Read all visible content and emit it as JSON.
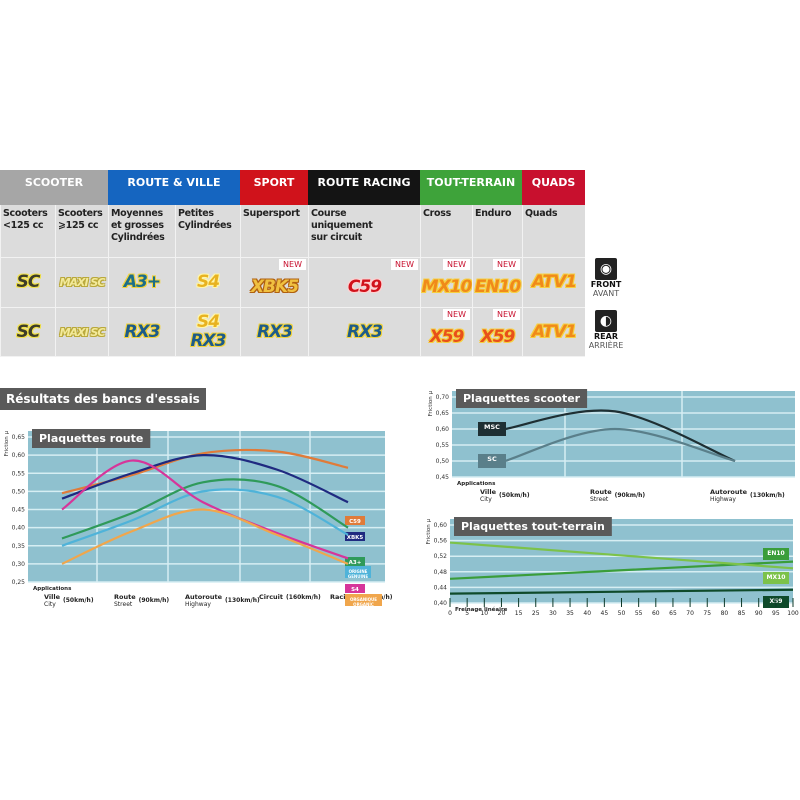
{
  "categories": [
    {
      "label": "SCOOTER",
      "color": "#a6a6a6",
      "span": 2
    },
    {
      "label": "ROUTE & VILLE",
      "color": "#1565c0",
      "span": 2
    },
    {
      "label": "SPORT",
      "color": "#d0121b",
      "span": 1
    },
    {
      "label": "ROUTE RACING",
      "color": "#141414",
      "span": 1
    },
    {
      "label": "TOUT-TERRAIN",
      "color": "#3ea33a",
      "span": 2
    },
    {
      "label": "QUADS",
      "color": "#c8102e",
      "span": 1
    }
  ],
  "uses": [
    "Scooters\n<125 cc",
    "Scooters\n⩾125 cc",
    "Moyennes\net grosses\nCylindrées",
    "Petites\nCylindrées",
    "Supersport",
    "Course\nuniquement\nsur circuit",
    "Cross",
    "Enduro",
    "Quads"
  ],
  "new_label": "NEW",
  "front": [
    {
      "names": [
        "SC"
      ],
      "new": false
    },
    {
      "names": [
        "MAXI SC"
      ],
      "new": false
    },
    {
      "names": [
        "A3+"
      ],
      "new": false
    },
    {
      "names": [
        "S4"
      ],
      "new": false
    },
    {
      "names": [
        "XBK5"
      ],
      "new": true
    },
    {
      "names": [
        "C59"
      ],
      "new": true
    },
    {
      "names": [
        "MX10"
      ],
      "new": true
    },
    {
      "names": [
        "EN10"
      ],
      "new": true
    },
    {
      "names": [
        "ATV1"
      ],
      "new": false
    }
  ],
  "rear": [
    {
      "names": [
        "SC"
      ],
      "new": false
    },
    {
      "names": [
        "MAXI SC"
      ],
      "new": false
    },
    {
      "names": [
        "RX3"
      ],
      "new": false
    },
    {
      "names": [
        "S4",
        "RX3"
      ],
      "new": false
    },
    {
      "names": [
        "RX3"
      ],
      "new": false
    },
    {
      "names": [
        "RX3"
      ],
      "new": false
    },
    {
      "names": [
        "X59"
      ],
      "new": true
    },
    {
      "names": [
        "X59"
      ],
      "new": true
    },
    {
      "names": [
        "ATV1"
      ],
      "new": false
    }
  ],
  "front_side": {
    "icon": "front-wheel-icon",
    "label": "FRONT",
    "sub": "AVANT"
  },
  "rear_side": {
    "icon": "rear-wheel-icon",
    "label": "REAR",
    "sub": "ARRIÈRE"
  },
  "results_title": "Résultats des bancs d'essais",
  "chart_data": [
    {
      "type": "line",
      "title": "Plaquettes route",
      "ylabel": "Friction µ",
      "xlabel": "Applications",
      "ylim": [
        0.25,
        0.65
      ],
      "yticks": [
        "0,25",
        "0,30",
        "0,35",
        "0,40",
        "0,45",
        "0,50",
        "0,55",
        "0,60",
        "0,65"
      ],
      "categories": [
        {
          "fr": "Ville",
          "en": "City",
          "speed": "(50km/h)"
        },
        {
          "fr": "Route",
          "en": "Street",
          "speed": "(90km/h)"
        },
        {
          "fr": "Autoroute",
          "en": "Highway",
          "speed": "(130km/h)"
        },
        {
          "fr": "Circuit",
          "en": "",
          "speed": "(160km/h)"
        },
        {
          "fr": "Racing",
          "en": "",
          "speed": "(250km/h)"
        }
      ],
      "series": [
        {
          "name": "C59",
          "color": "#e07b39",
          "values": [
            0.495,
            0.545,
            0.605,
            0.61,
            0.565
          ]
        },
        {
          "name": "XBK5",
          "color": "#1f2a80",
          "values": [
            0.48,
            0.55,
            0.6,
            0.56,
            0.47
          ]
        },
        {
          "name": "A3+",
          "color": "#2f9a5a",
          "values": [
            0.37,
            0.44,
            0.525,
            0.515,
            0.4
          ]
        },
        {
          "name": "ORIGINE GENUINE",
          "color": "#4fb3d9",
          "values": [
            0.35,
            0.42,
            0.5,
            0.485,
            0.38
          ]
        },
        {
          "name": "S4",
          "color": "#d6359a",
          "values": [
            0.45,
            0.585,
            0.47,
            0.385,
            0.315
          ]
        },
        {
          "name": "ORGANIQUE ORGANIC",
          "color": "#f0a64c",
          "values": [
            0.3,
            0.39,
            0.45,
            0.38,
            0.3
          ]
        }
      ]
    },
    {
      "type": "line",
      "title": "Plaquettes scooter",
      "ylabel": "Friction µ",
      "xlabel": "Applications",
      "ylim": [
        0.45,
        0.7
      ],
      "yticks": [
        "0,45",
        "0,50",
        "0,55",
        "0,60",
        "0,65",
        "0,70"
      ],
      "categories": [
        {
          "fr": "Ville",
          "en": "City",
          "speed": "(50km/h)"
        },
        {
          "fr": "Route",
          "en": "Street",
          "speed": "(90km/h)"
        },
        {
          "fr": "Autoroute",
          "en": "Highway",
          "speed": "(130km/h)"
        }
      ],
      "series": [
        {
          "name": "MSC",
          "color": "#1e2f33",
          "values": [
            0.6,
            0.655,
            0.5
          ]
        },
        {
          "name": "SC",
          "color": "#5a7f8a",
          "values": [
            0.5,
            0.6,
            0.5
          ]
        }
      ]
    },
    {
      "type": "line",
      "title": "Plaquettes tout-terrain",
      "ylabel": "Friction µ",
      "xlabel": "Freinage linéaire",
      "ylim": [
        0.4,
        0.6
      ],
      "yticks": [
        "0,40",
        "0,44",
        "0,48",
        "0,52",
        "0,56",
        "0,60"
      ],
      "xticks": [
        "0",
        "5",
        "10",
        "20",
        "15",
        "25",
        "30",
        "35",
        "40",
        "45",
        "50",
        "55",
        "60",
        "65",
        "70",
        "75",
        "80",
        "85",
        "90",
        "95",
        "100"
      ],
      "x": [
        0,
        100
      ],
      "series": [
        {
          "name": "EN10",
          "color": "#3a9d3a",
          "values": [
            0.462,
            0.506
          ]
        },
        {
          "name": "MX10",
          "color": "#7cc24a",
          "values": [
            0.555,
            0.489
          ]
        },
        {
          "name": "X59",
          "color": "#0f4a2a",
          "values": [
            0.424,
            0.434
          ]
        }
      ]
    }
  ]
}
